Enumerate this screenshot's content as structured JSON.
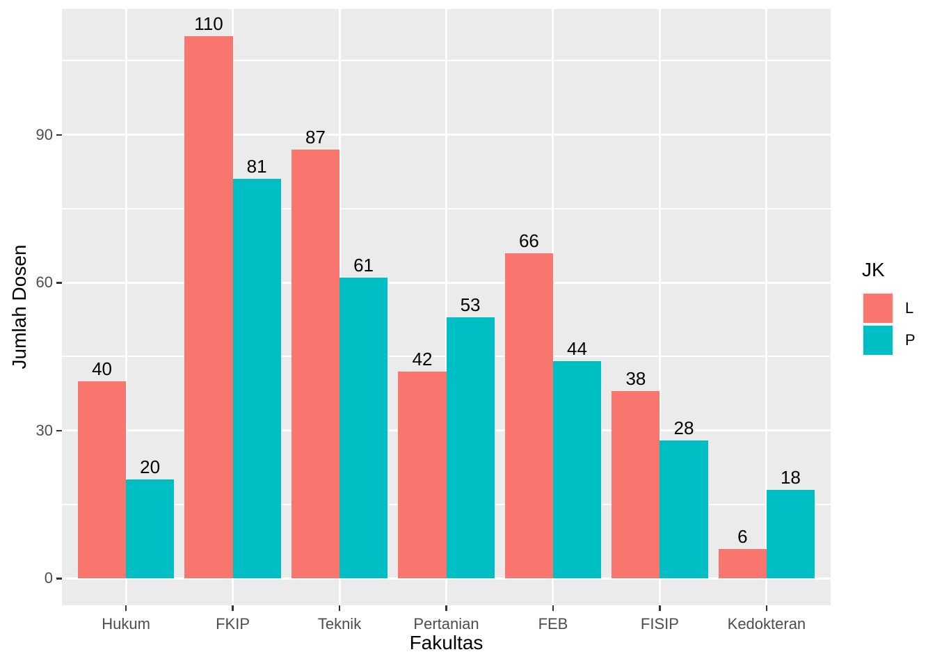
{
  "chart_data": {
    "type": "bar",
    "title": "",
    "categories": [
      "Hukum",
      "FKIP",
      "Teknik",
      "Pertanian",
      "FEB",
      "FISIP",
      "Kedokteran"
    ],
    "series": [
      {
        "name": "L",
        "color": "#F8766D",
        "values": [
          40,
          110,
          87,
          42,
          66,
          38,
          6
        ]
      },
      {
        "name": "P",
        "color": "#00BFC4",
        "values": [
          20,
          81,
          61,
          53,
          44,
          28,
          18
        ]
      }
    ],
    "xlabel": "Fakultas",
    "ylabel": "Jumlah Dosen",
    "legend_title": "JK",
    "legend_position": "right",
    "y_ticks": [
      0,
      30,
      60,
      90
    ],
    "y_minor_ticks": [
      15,
      45,
      75,
      105
    ],
    "ylim": [
      -5.5,
      115.5
    ],
    "bar_value_labels": true,
    "grid": true,
    "dodge_bar_width": 0.45
  },
  "colors": {
    "panel_bg": "#EBEBEB",
    "gridline": "#FFFFFF",
    "axis_text": "#4D4D4D",
    "axis_title_text": "#000000",
    "bar_label_text": "#000000",
    "tick_mark": "#333333",
    "legend_key_bg": "#F2F2F2",
    "page_bg": "#FFFFFF"
  }
}
